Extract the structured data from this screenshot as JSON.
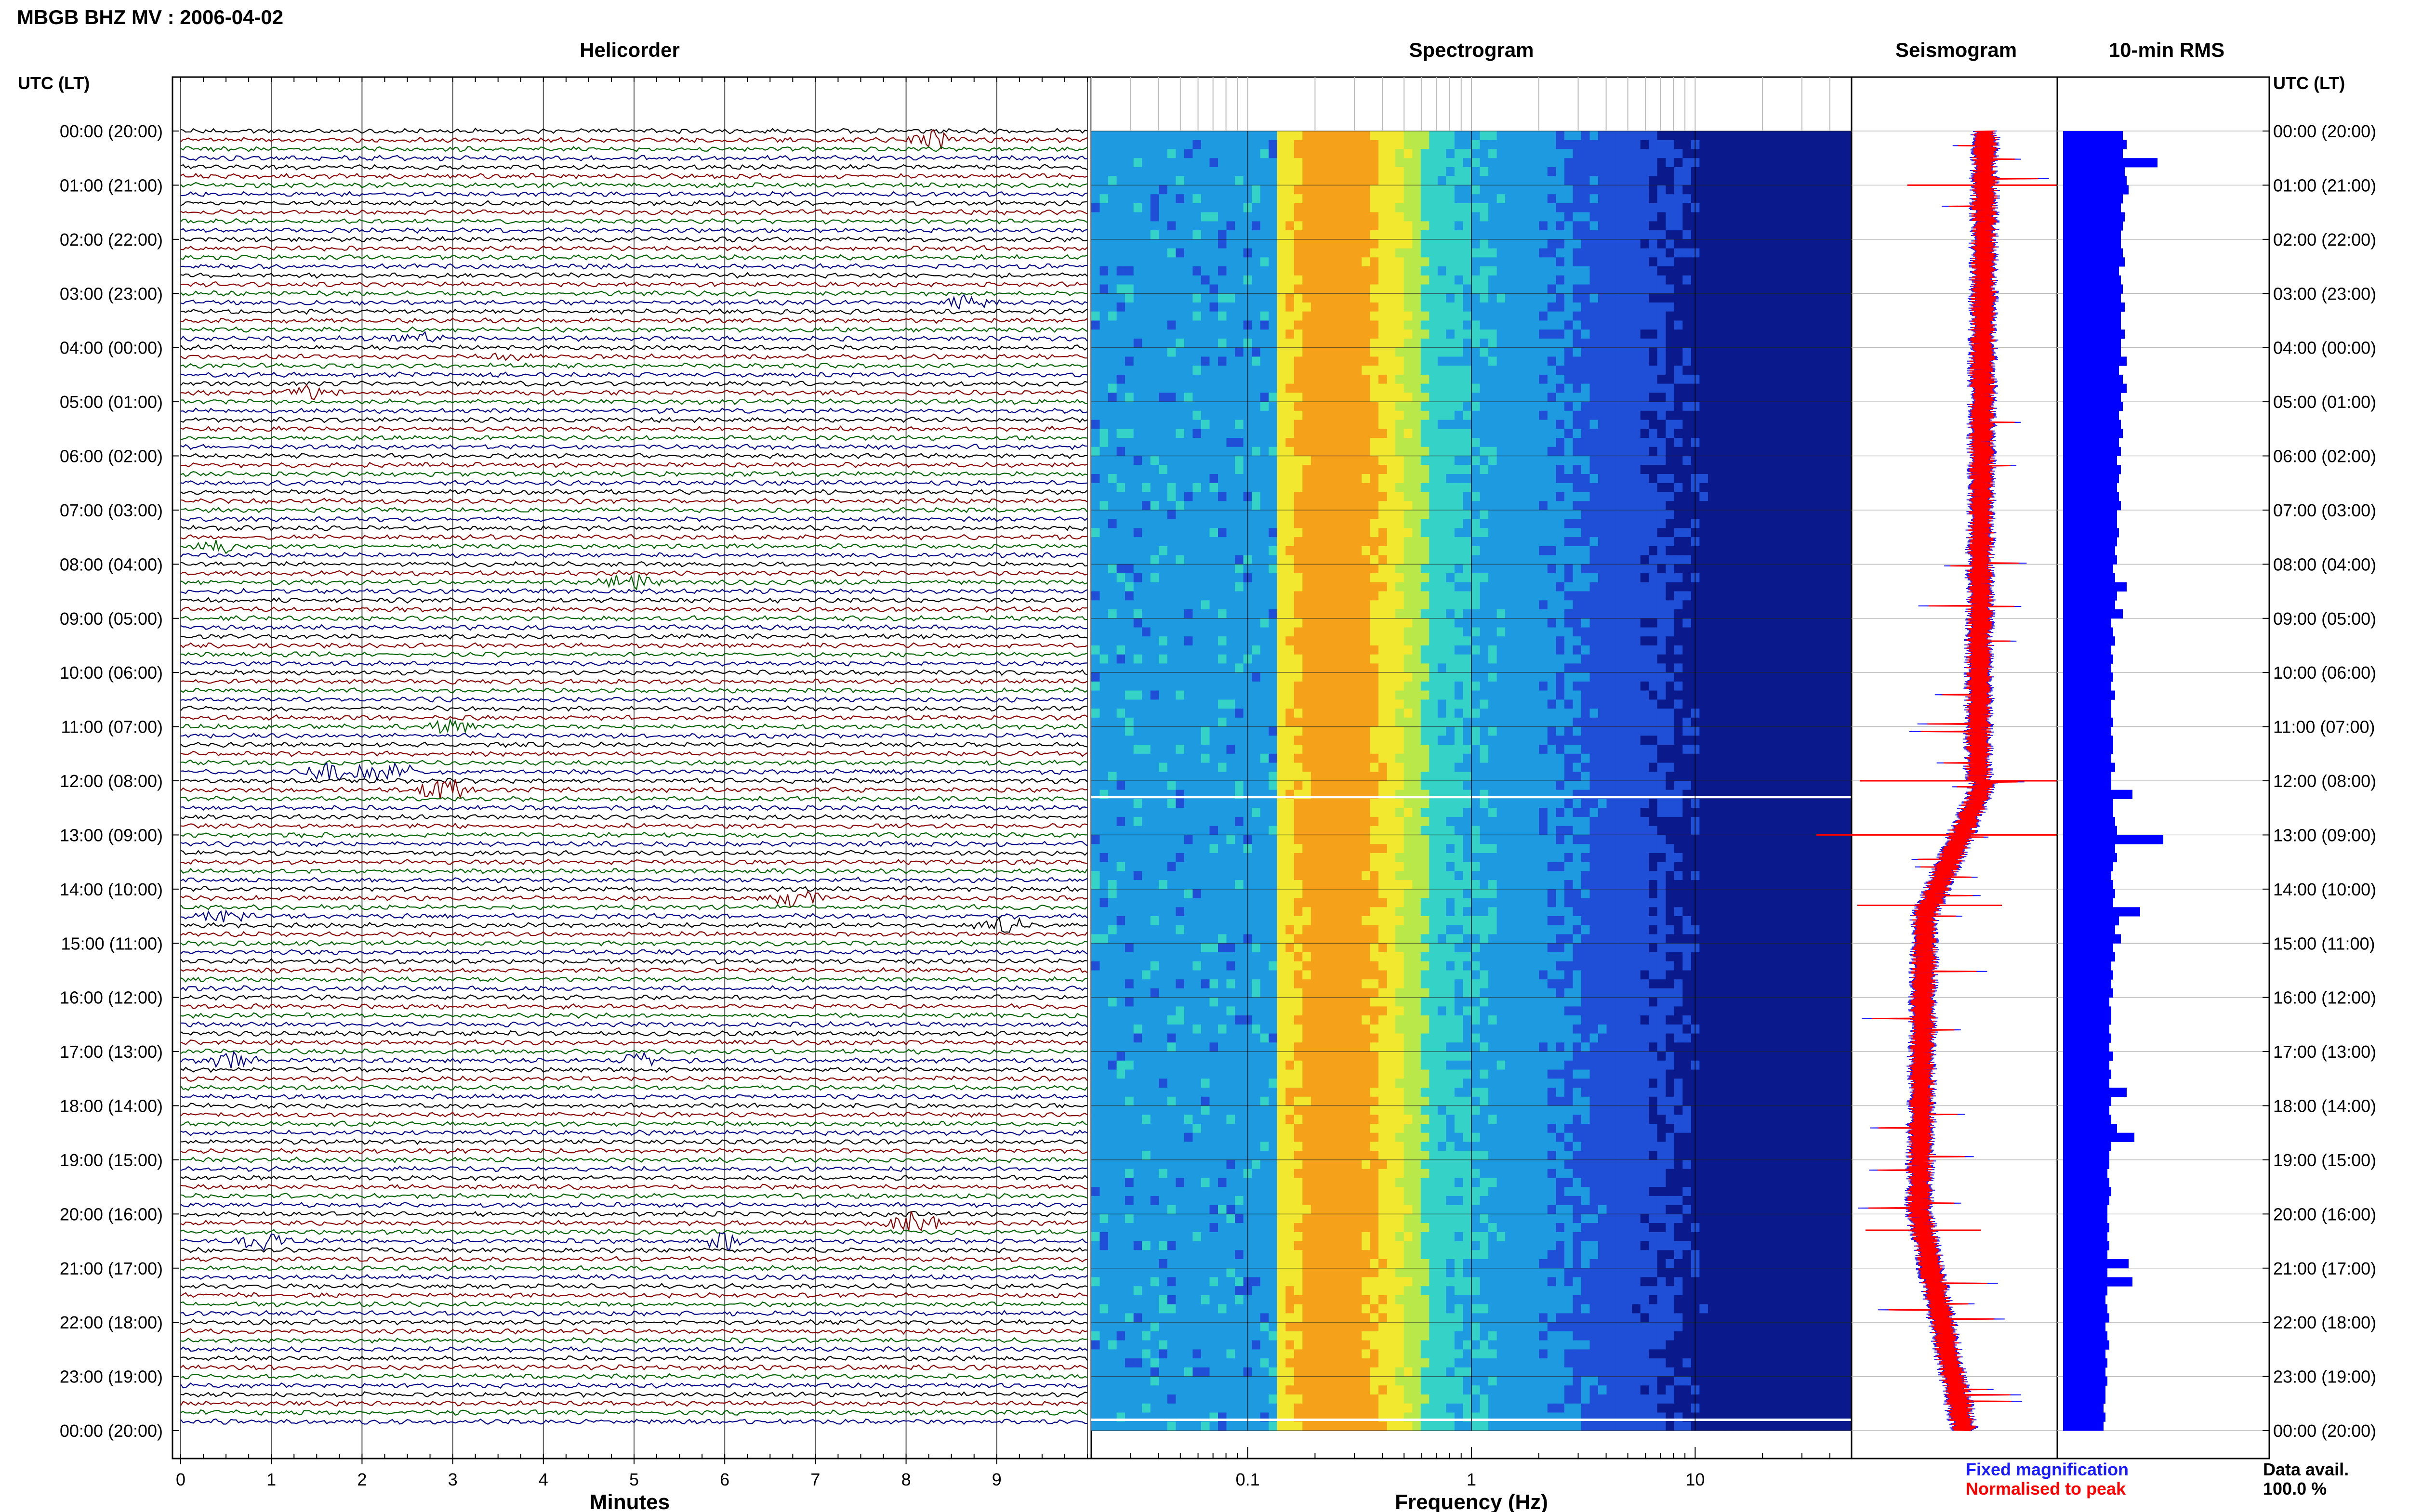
{
  "header": {
    "title": "MBGB BHZ MV : 2006-04-02",
    "utc_label_left": "UTC (LT)",
    "utc_label_right": "UTC (LT)"
  },
  "panels": {
    "helicorder": "Helicorder",
    "spectrogram": "Spectrogram",
    "seismogram": "Seismogram",
    "rms": "10-min RMS"
  },
  "legend": {
    "fixed": "Fixed magnification",
    "normalised": "Normalised to peak",
    "fixed_color": "#1a1aff",
    "normalised_color": "#ff0000"
  },
  "data_avail": {
    "label": "Data avail.",
    "value": "100.0 %"
  },
  "colors": {
    "trace_cycle": [
      "#000000",
      "#8b0000",
      "#006400",
      "#00008b"
    ],
    "rms_bar": "#0000ff",
    "spectrogram_palette": [
      "#0a1a8c",
      "#1f4fd6",
      "#1e9be0",
      "#35d2c8",
      "#b8e84a",
      "#f2e830",
      "#f5a21a"
    ]
  },
  "chart_data": [
    {
      "type": "line",
      "title": "Helicorder",
      "xlabel": "Minutes",
      "xticks": [
        "0",
        "1",
        "2",
        "3",
        "4",
        "5",
        "6",
        "7",
        "8",
        "9"
      ],
      "xlim": [
        0,
        10
      ],
      "ylim": [
        0,
        24
      ],
      "rows_per_hour": 6,
      "yticks": [
        "00:00 (20:00)",
        "01:00 (21:00)",
        "02:00 (22:00)",
        "03:00 (23:00)",
        "04:00 (00:00)",
        "05:00 (01:00)",
        "06:00 (02:00)",
        "07:00 (03:00)",
        "08:00 (04:00)",
        "09:00 (05:00)",
        "10:00 (06:00)",
        "11:00 (07:00)",
        "12:00 (08:00)",
        "13:00 (09:00)",
        "14:00 (10:00)",
        "15:00 (11:00)",
        "16:00 (12:00)",
        "17:00 (13:00)",
        "18:00 (14:00)",
        "19:00 (15:00)",
        "20:00 (16:00)",
        "21:00 (17:00)",
        "22:00 (18:00)",
        "23:00 (19:00)",
        "00:00 (20:00)"
      ],
      "events": [
        {
          "row": 1,
          "minute": 8.3,
          "amp": 1.5
        },
        {
          "row": 19,
          "minute": 8.7,
          "amp": 1.3
        },
        {
          "row": 23,
          "minute": 2.6,
          "amp": 1.0
        },
        {
          "row": 25,
          "minute": 3.6,
          "amp": 0.8
        },
        {
          "row": 29,
          "minute": 1.4,
          "amp": 1.0
        },
        {
          "row": 46,
          "minute": 0.4,
          "amp": 1.2
        },
        {
          "row": 50,
          "minute": 5.0,
          "amp": 1.5
        },
        {
          "row": 66,
          "minute": 3.0,
          "amp": 1.2
        },
        {
          "row": 73,
          "minute": 2.9,
          "amp": 2.2
        },
        {
          "row": 85,
          "minute": 6.8,
          "amp": 1.8
        },
        {
          "row": 87,
          "minute": 0.5,
          "amp": 1.3
        },
        {
          "row": 88,
          "minute": 9.1,
          "amp": 1.2
        },
        {
          "row": 103,
          "minute": 0.6,
          "amp": 1.5
        },
        {
          "row": 103,
          "minute": 5.0,
          "amp": 1.0
        },
        {
          "row": 121,
          "minute": 8.1,
          "amp": 1.8
        },
        {
          "row": 123,
          "minute": 0.9,
          "amp": 1.3
        },
        {
          "row": 123,
          "minute": 6.0,
          "amp": 1.4
        }
      ],
      "step": {
        "row": 71,
        "from_minute": 1.35,
        "to_minute": 2.6,
        "amp": 1.3
      }
    },
    {
      "type": "heatmap",
      "title": "Spectrogram",
      "xlabel": "Frequency (Hz)",
      "xscale": "log",
      "xlim": [
        0.02,
        50
      ],
      "xticks": [
        "0.1",
        "1",
        "10"
      ],
      "peak_frequency_hz": 0.25,
      "ylim": [
        0,
        24
      ]
    },
    {
      "type": "line",
      "title": "Seismogram",
      "series": [
        {
          "name": "Fixed magnification"
        },
        {
          "name": "Normalised to peak"
        }
      ],
      "ylim": [
        0,
        24
      ]
    },
    {
      "type": "bar",
      "title": "10-min RMS",
      "orientation": "horizontal",
      "ylim": [
        0,
        24
      ],
      "values": [
        0.62,
        0.66,
        0.62,
        0.98,
        0.64,
        0.66,
        0.68,
        0.62,
        0.6,
        0.64,
        0.62,
        0.6,
        0.6,
        0.62,
        0.64,
        0.58,
        0.6,
        0.62,
        0.6,
        0.64,
        0.6,
        0.6,
        0.64,
        0.6,
        0.6,
        0.66,
        0.58,
        0.62,
        0.66,
        0.6,
        0.62,
        0.58,
        0.6,
        0.62,
        0.58,
        0.6,
        0.56,
        0.6,
        0.58,
        0.56,
        0.58,
        0.6,
        0.56,
        0.56,
        0.58,
        0.56,
        0.54,
        0.56,
        0.52,
        0.54,
        0.66,
        0.56,
        0.54,
        0.62,
        0.5,
        0.52,
        0.54,
        0.5,
        0.52,
        0.5,
        0.52,
        0.5,
        0.54,
        0.5,
        0.5,
        0.52,
        0.5,
        0.52,
        0.52,
        0.5,
        0.54,
        0.5,
        0.5,
        0.72,
        0.52,
        0.52,
        0.54,
        0.56,
        1.04,
        0.54,
        0.56,
        0.52,
        0.5,
        0.52,
        0.54,
        0.52,
        0.8,
        0.58,
        0.54,
        0.6,
        0.52,
        0.54,
        0.5,
        0.52,
        0.5,
        0.52,
        0.48,
        0.5,
        0.5,
        0.48,
        0.5,
        0.48,
        0.52,
        0.48,
        0.5,
        0.48,
        0.66,
        0.5,
        0.48,
        0.5,
        0.56,
        0.74,
        0.5,
        0.48,
        0.48,
        0.46,
        0.48,
        0.5,
        0.48,
        0.46,
        0.46,
        0.48,
        0.46,
        0.48,
        0.46,
        0.68,
        0.46,
        0.72,
        0.46,
        0.44,
        0.46,
        0.48,
        0.44,
        0.46,
        0.48,
        0.44,
        0.46,
        0.44,
        0.46,
        0.44,
        0.44,
        0.42,
        0.44,
        0.42
      ]
    }
  ]
}
